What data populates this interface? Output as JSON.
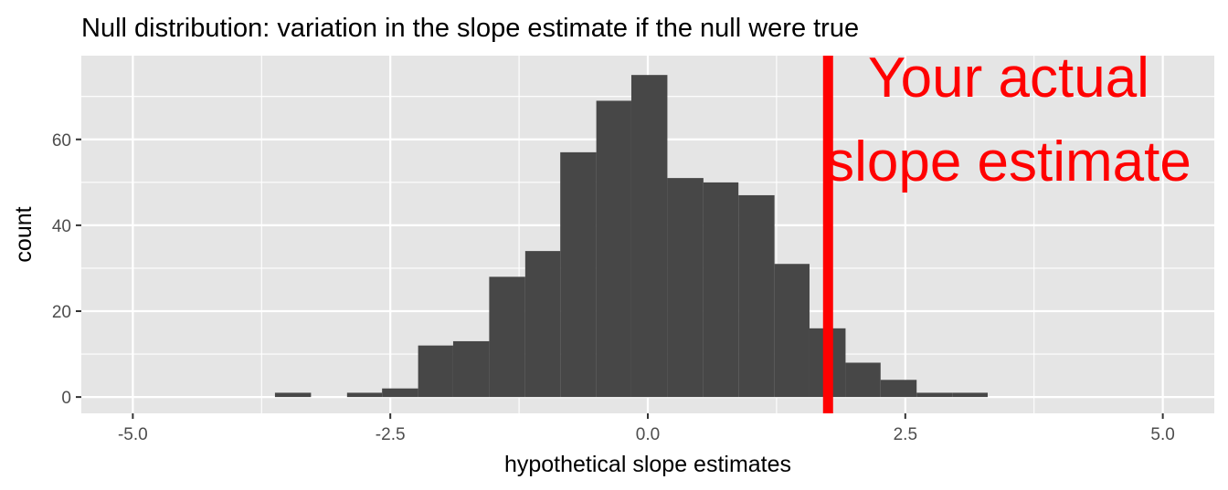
{
  "chart_data": {
    "type": "bar",
    "title": "Null distribution: variation in the slope estimate if the null were true",
    "xlabel": "hypothetical slope estimates",
    "ylabel": "count",
    "xlim": [
      -5.5,
      5.5
    ],
    "ylim": [
      -3.8,
      79.5
    ],
    "x_ticks": [
      -5.0,
      -2.5,
      0.0,
      2.5,
      5.0
    ],
    "x_tick_labels": [
      "-5.0",
      "-2.5",
      "0.0",
      "2.5",
      "5.0"
    ],
    "y_ticks": [
      0,
      20,
      40,
      60
    ],
    "y_tick_labels": [
      "0",
      "20",
      "40",
      "60"
    ],
    "bins": [
      {
        "x0": -3.62,
        "x1": -3.27,
        "count": 1
      },
      {
        "x0": -2.92,
        "x1": -2.58,
        "count": 1
      },
      {
        "x0": -2.58,
        "x1": -2.23,
        "count": 2
      },
      {
        "x0": -2.23,
        "x1": -1.89,
        "count": 12
      },
      {
        "x0": -1.89,
        "x1": -1.54,
        "count": 13
      },
      {
        "x0": -1.54,
        "x1": -1.19,
        "count": 28
      },
      {
        "x0": -1.19,
        "x1": -0.85,
        "count": 34
      },
      {
        "x0": -0.85,
        "x1": -0.5,
        "count": 57
      },
      {
        "x0": -0.5,
        "x1": -0.16,
        "count": 69
      },
      {
        "x0": -0.16,
        "x1": 0.19,
        "count": 75
      },
      {
        "x0": 0.19,
        "x1": 0.54,
        "count": 51
      },
      {
        "x0": 0.54,
        "x1": 0.88,
        "count": 50
      },
      {
        "x0": 0.88,
        "x1": 1.23,
        "count": 47
      },
      {
        "x0": 1.23,
        "x1": 1.57,
        "count": 31
      },
      {
        "x0": 1.57,
        "x1": 1.92,
        "count": 16
      },
      {
        "x0": 1.92,
        "x1": 2.26,
        "count": 8
      },
      {
        "x0": 2.26,
        "x1": 2.61,
        "count": 4
      },
      {
        "x0": 2.61,
        "x1": 2.96,
        "count": 1
      },
      {
        "x0": 2.96,
        "x1": 3.3,
        "count": 1
      }
    ],
    "vline": {
      "x": 1.75,
      "color": "#ff0000"
    },
    "annotation": {
      "lines": [
        "Your actual",
        "slope estimate"
      ],
      "color": "#ff0000"
    },
    "colors": {
      "bar": "#474747",
      "panel": "#e5e5e5",
      "grid": "#ffffff"
    }
  }
}
